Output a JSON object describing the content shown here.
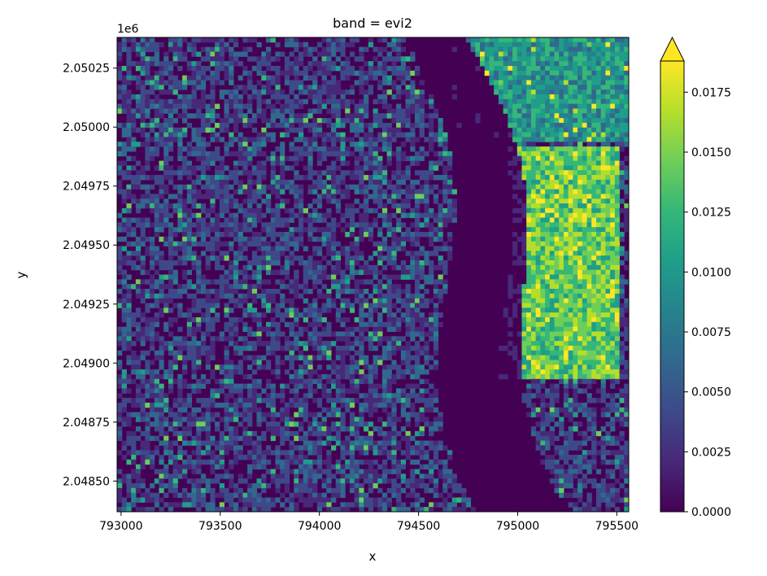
{
  "chart_data": {
    "type": "heatmap",
    "title": "band = evi2",
    "xlabel": "x",
    "ylabel": "y",
    "y_offset_label": "1e6",
    "xlim": [
      792980,
      795560
    ],
    "ylim": [
      2048370,
      2050380
    ],
    "x_ticks": [
      {
        "value": 793000,
        "label": "793000"
      },
      {
        "value": 793500,
        "label": "793500"
      },
      {
        "value": 794000,
        "label": "794000"
      },
      {
        "value": 794500,
        "label": "794500"
      },
      {
        "value": 795000,
        "label": "795000"
      },
      {
        "value": 795500,
        "label": "795500"
      }
    ],
    "y_ticks": [
      {
        "value": 2048500,
        "label": "2.04850"
      },
      {
        "value": 2048750,
        "label": "2.04875"
      },
      {
        "value": 2049000,
        "label": "2.04900"
      },
      {
        "value": 2049250,
        "label": "2.04925"
      },
      {
        "value": 2049500,
        "label": "2.04950"
      },
      {
        "value": 2049750,
        "label": "2.04975"
      },
      {
        "value": 2050000,
        "label": "2.05000"
      },
      {
        "value": 2050250,
        "label": "2.05025"
      }
    ],
    "colorbar": {
      "colormap": "viridis",
      "vmin": 0.0,
      "vmax": 0.0188,
      "extend": "max",
      "ticks": [
        {
          "value": 0.0,
          "label": "0.0000"
        },
        {
          "value": 0.0025,
          "label": "0.0025"
        },
        {
          "value": 0.005,
          "label": "0.0050"
        },
        {
          "value": 0.0075,
          "label": "0.0075"
        },
        {
          "value": 0.01,
          "label": "0.0100"
        },
        {
          "value": 0.0125,
          "label": "0.0125"
        },
        {
          "value": 0.015,
          "label": "0.0150"
        },
        {
          "value": 0.0175,
          "label": "0.0175"
        }
      ]
    },
    "colors": [
      "#440154",
      "#482878",
      "#3e4989",
      "#31688e",
      "#26828e",
      "#1f9e89",
      "#35b779",
      "#6ece58",
      "#b5de2b",
      "#fde725"
    ]
  }
}
